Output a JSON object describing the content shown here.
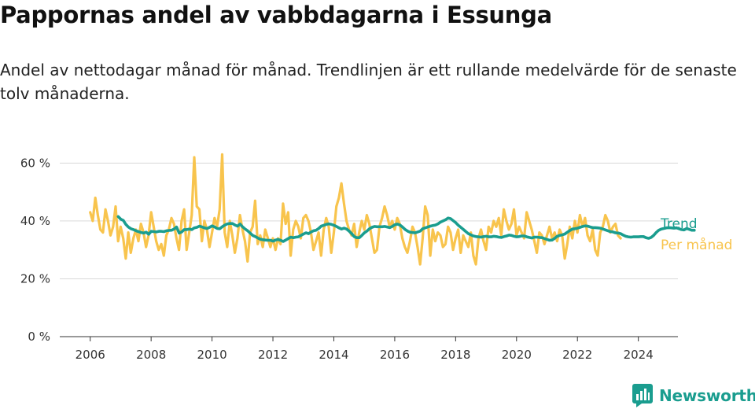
{
  "title": "Pappornas andel av vabbdagarna i Essunga",
  "subtitle": "Andel av nettodagar månad för månad. Trendlinjen är ett rullande medelvärde för de senaste tolv månaderna.",
  "brand": "Newsworthy",
  "colors": {
    "monthly": "#f8c44d",
    "trend": "#1a9d8f",
    "grid": "#d9d9d9",
    "axis": "#333333",
    "brand": "#1a9d8f"
  },
  "chart_data": {
    "type": "line",
    "title": "Pappornas andel av vabbdagarna i Essunga",
    "xlim": [
      2006.0,
      2024.4
    ],
    "ylim": [
      0,
      65
    ],
    "x_ticks": [
      2006,
      2008,
      2010,
      2012,
      2014,
      2016,
      2018,
      2020,
      2022,
      2024
    ],
    "x_tick_labels": [
      "2006",
      "2008",
      "2010",
      "2012",
      "2014",
      "2016",
      "2018",
      "2020",
      "2022",
      "2024"
    ],
    "y_ticks": [
      0,
      20,
      40,
      60
    ],
    "y_tick_labels": [
      "0 %",
      "20 %",
      "40 %",
      "60 %"
    ],
    "grid": true,
    "legend": "inline labels at right end of lines",
    "series": [
      {
        "name": "Per månad",
        "x_start": 2006.0,
        "step": 0.08333,
        "values": [
          43,
          40,
          48,
          42,
          37,
          36,
          44,
          40,
          35,
          38,
          45,
          33,
          38,
          34,
          27,
          36,
          29,
          34,
          37,
          33,
          39,
          36,
          31,
          35,
          43,
          38,
          33,
          30,
          32,
          28,
          35,
          37,
          41,
          39,
          34,
          30,
          40,
          44,
          30,
          36,
          42,
          62,
          45,
          44,
          33,
          40,
          37,
          31,
          36,
          41,
          38,
          44,
          63,
          36,
          31,
          40,
          35,
          29,
          34,
          42,
          37,
          33,
          26,
          36,
          38,
          47,
          32,
          35,
          31,
          37,
          34,
          31,
          34,
          30,
          34,
          32,
          46,
          39,
          43,
          28,
          37,
          40,
          38,
          34,
          41,
          42,
          40,
          36,
          30,
          33,
          36,
          28,
          37,
          41,
          38,
          29,
          36,
          45,
          48,
          53,
          46,
          40,
          37,
          35,
          39,
          31,
          36,
          40,
          37,
          42,
          39,
          34,
          29,
          30,
          38,
          41,
          45,
          42,
          38,
          40,
          37,
          41,
          39,
          34,
          31,
          29,
          33,
          38,
          36,
          31,
          25,
          34,
          45,
          42,
          28,
          37,
          33,
          36,
          35,
          31,
          32,
          38,
          36,
          30,
          34,
          37,
          29,
          35,
          33,
          31,
          36,
          28,
          25,
          34,
          37,
          33,
          30,
          38,
          36,
          40,
          38,
          41,
          35,
          44,
          40,
          37,
          39,
          44,
          35,
          38,
          36,
          34,
          43,
          40,
          37,
          33,
          29,
          36,
          35,
          32,
          35,
          38,
          34,
          36,
          33,
          37,
          35,
          27,
          32,
          38,
          34,
          40,
          36,
          42,
          38,
          41,
          35,
          33,
          37,
          30,
          28,
          36,
          38,
          42,
          40,
          36,
          38,
          39,
          35,
          34
        ]
      },
      {
        "name": "Trend",
        "x_start": 2006.92,
        "step": 0.08333,
        "values": [
          41.5,
          40.6,
          40.2,
          38.8,
          37.9,
          37.3,
          37.0,
          36.6,
          36.3,
          36.0,
          35.8,
          36.1,
          35.4,
          36.4,
          36.3,
          36.2,
          36.4,
          36.4,
          36.3,
          36.6,
          36.7,
          36.8,
          37.2,
          37.9,
          35.8,
          36.2,
          37.0,
          37.0,
          37.2,
          37.0,
          37.6,
          37.8,
          38.2,
          37.9,
          37.6,
          37.4,
          37.8,
          38.3,
          37.9,
          37.4,
          37.3,
          38.0,
          38.6,
          39.0,
          39.1,
          39.1,
          38.6,
          38.2,
          38.9,
          38.0,
          37.2,
          36.6,
          35.8,
          35.0,
          34.6,
          34.1,
          33.7,
          33.5,
          33.4,
          33.3,
          33.3,
          33.0,
          33.4,
          33.6,
          33.3,
          32.9,
          33.4,
          33.9,
          34.4,
          34.2,
          34.4,
          34.5,
          35.0,
          35.5,
          35.9,
          35.6,
          36.2,
          36.6,
          36.8,
          37.4,
          38.2,
          38.5,
          38.8,
          39.0,
          38.8,
          38.5,
          38.1,
          37.6,
          37.2,
          37.5,
          37.2,
          36.5,
          35.6,
          34.6,
          34.2,
          34.2,
          35.0,
          35.9,
          36.5,
          37.3,
          37.8,
          38.1,
          38.0,
          38.0,
          38.0,
          38.1,
          37.9,
          37.7,
          38.1,
          38.7,
          38.9,
          38.6,
          37.9,
          37.1,
          36.5,
          36.1,
          36.0,
          35.9,
          36.2,
          36.5,
          37.3,
          37.6,
          37.9,
          38.2,
          38.4,
          38.6,
          39.0,
          39.6,
          40.0,
          40.4,
          41.0,
          40.8,
          40.1,
          39.4,
          38.5,
          37.8,
          37.1,
          36.3,
          35.6,
          35.2,
          34.8,
          34.6,
          34.5,
          34.4,
          34.6,
          34.7,
          34.5,
          34.5,
          34.7,
          34.6,
          34.4,
          34.3,
          34.6,
          34.8,
          35.1,
          35.0,
          34.7,
          34.5,
          34.6,
          34.8,
          34.8,
          34.5,
          34.3,
          34.1,
          34.4,
          34.4,
          34.3,
          34.2,
          33.9,
          33.6,
          33.3,
          33.4,
          34.0,
          34.7,
          35.0,
          35.2,
          35.5,
          36.1,
          36.7,
          37.2,
          37.3,
          37.5,
          37.8,
          38.1,
          38.3,
          38.2,
          37.9,
          37.7,
          37.7,
          37.6,
          37.5,
          37.2,
          36.9,
          36.6,
          36.3,
          36.2,
          35.9,
          35.8,
          35.6,
          35.1,
          34.7,
          34.5,
          34.4,
          34.5,
          34.5,
          34.5,
          34.6,
          34.6,
          34.2,
          34.0,
          34.3,
          35.0,
          36.0,
          36.8,
          37.2,
          37.4,
          37.6,
          37.7,
          37.6,
          37.5,
          37.6,
          37.3,
          37.0,
          36.9,
          37.4,
          37.1,
          36.8,
          36.8
        ]
      }
    ]
  }
}
